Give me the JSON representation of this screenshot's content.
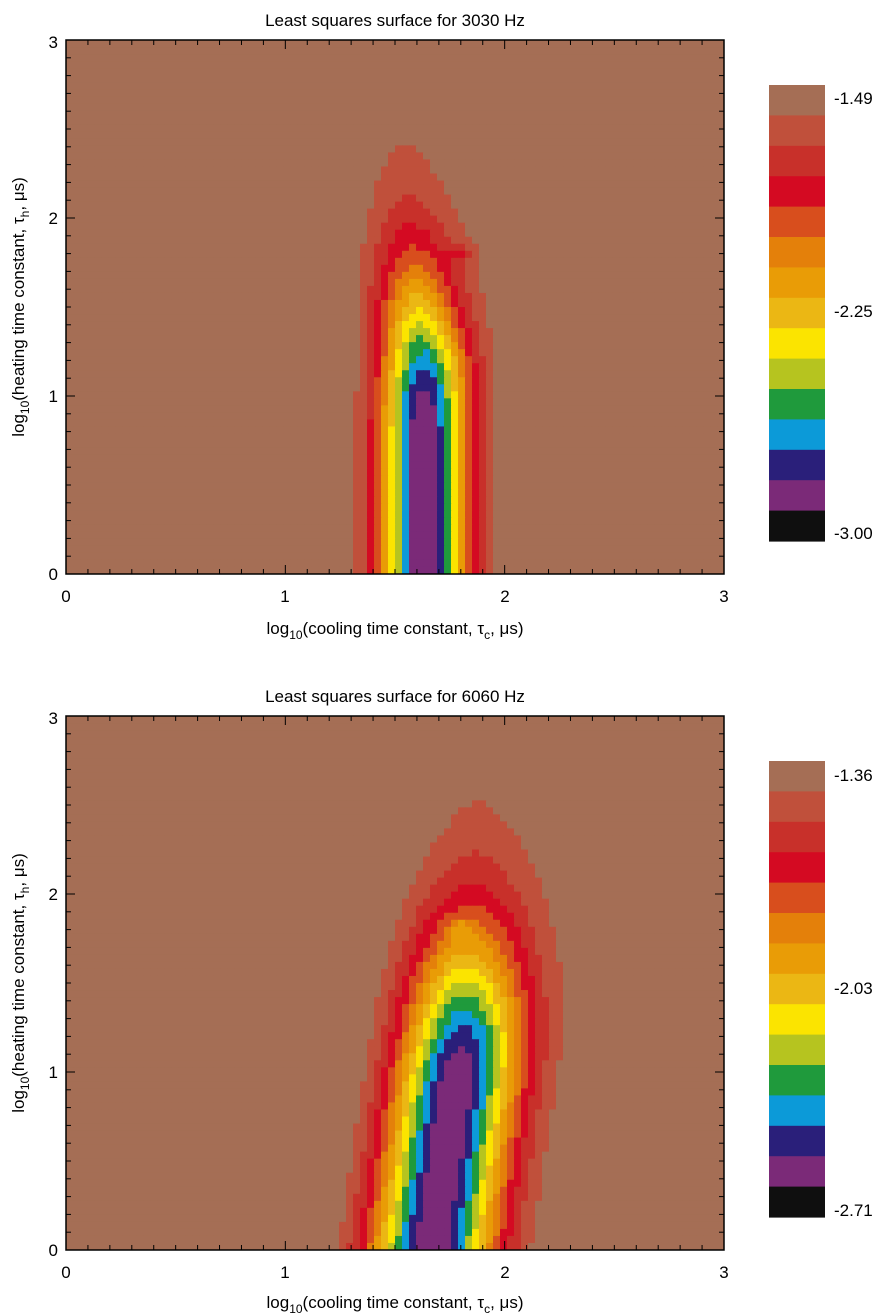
{
  "chart_data": [
    {
      "type": "heatmap",
      "title": "Least squares surface for 3030 Hz",
      "xlabel": {
        "pre": "log",
        "sub1": "10",
        "mid": "(cooling time constant, τ",
        "sub2": "c",
        "post": ", μs)"
      },
      "ylabel": {
        "pre": "log",
        "sub1": "10",
        "mid": "(heating time constant, τ",
        "sub2": "h",
        "post": ", μs)"
      },
      "xlim": [
        0,
        3
      ],
      "ylim": [
        0,
        3
      ],
      "x_ticks": [
        "0",
        "1",
        "2",
        "3"
      ],
      "y_ticks": [
        "0",
        "1",
        "2",
        "3"
      ],
      "colorbar_labels": [
        "-1.49",
        "-2.25",
        "-3.00"
      ],
      "colorbar_values": [
        -1.49,
        -2.25,
        -3.0
      ],
      "colorbar_colors": [
        "#a56e55",
        "#c0503b",
        "#c8302a",
        "#d40a22",
        "#d84e1d",
        "#e4800a",
        "#e99c06",
        "#ebb714",
        "#fbe400",
        "#b6c41f",
        "#1f9a3c",
        "#0c9ad8",
        "#2a1f7a",
        "#7b2a78",
        "#0f0f0f"
      ],
      "minimum": {
        "x": 1.63,
        "y": 0.35
      },
      "secondary_minimum": {
        "x": 1.8,
        "y": 1.8
      },
      "valley_width": 0.14,
      "bend": 0.0,
      "min_extent_y": 0.45,
      "background_color": "#905a48"
    },
    {
      "type": "heatmap",
      "title": "Least squares surface for 6060 Hz",
      "xlabel": {
        "pre": "log",
        "sub1": "10",
        "mid": "(cooling time constant, τ",
        "sub2": "c",
        "post": ", μs)"
      },
      "ylabel": {
        "pre": "log",
        "sub1": "10",
        "mid": "(heating time constant, τ",
        "sub2": "h",
        "post": ", μs)"
      },
      "xlim": [
        0,
        3
      ],
      "ylim": [
        0,
        3
      ],
      "x_ticks": [
        "0",
        "1",
        "2",
        "3"
      ],
      "y_ticks": [
        "0",
        "1",
        "2",
        "3"
      ],
      "colorbar_labels": [
        "-1.36",
        "-2.03",
        "-2.71"
      ],
      "colorbar_values": [
        -1.36,
        -2.03,
        -2.71
      ],
      "colorbar_colors": [
        "#a56e55",
        "#c0503b",
        "#c8302a",
        "#d40a22",
        "#d84e1d",
        "#e4800a",
        "#e99c06",
        "#ebb714",
        "#fbe400",
        "#b6c41f",
        "#1f9a3c",
        "#0c9ad8",
        "#2a1f7a",
        "#7b2a78",
        "#0f0f0f"
      ],
      "minimum": {
        "x": 1.73,
        "y": 0.55
      },
      "secondary_minimum": {
        "x": 1.8,
        "y": 1.8
      },
      "valley_width": 0.2,
      "bend": 0.12,
      "min_extent_y": 0.35,
      "background_color": "#905a48"
    }
  ]
}
